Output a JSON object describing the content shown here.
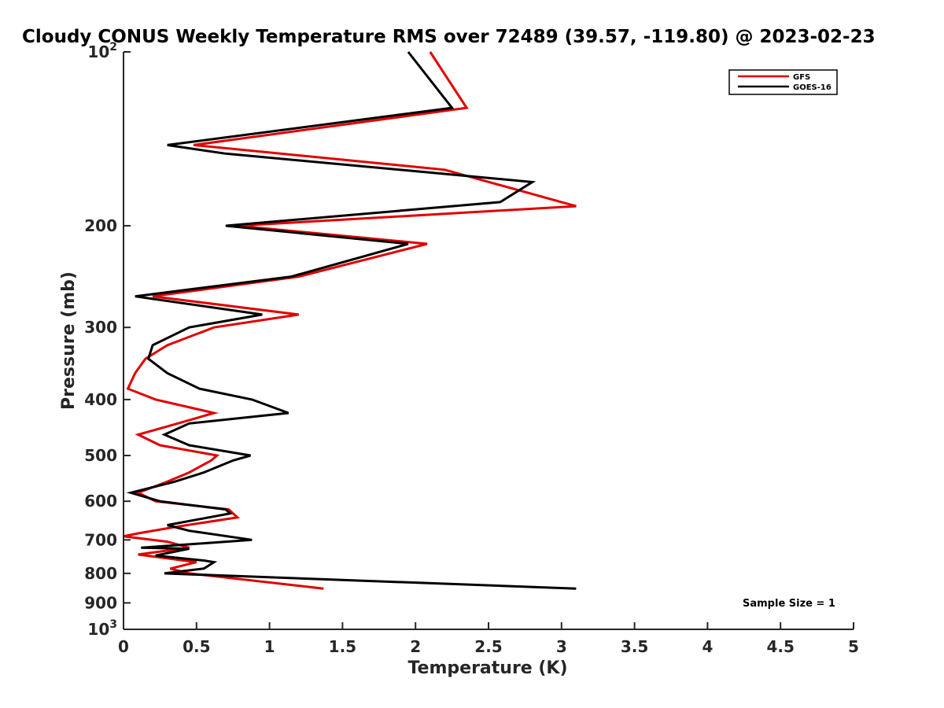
{
  "chart_data": {
    "type": "line",
    "title": "Cloudy CONUS Weekly Temperature RMS over 72489 (39.57, -119.80) @ 2023-02-23",
    "xlabel": "Temperature (K)",
    "ylabel": "Pressure (mb)",
    "xlim": [
      0,
      5
    ],
    "ylim": [
      100,
      1000
    ],
    "y_scale": "log",
    "y_reversed": true,
    "x_ticks": [
      "0",
      "0.5",
      "1",
      "1.5",
      "2",
      "2.5",
      "3",
      "3.5",
      "4",
      "4.5",
      "5"
    ],
    "y_ticks": [
      {
        "value": 100,
        "label": "10",
        "sup": "2"
      },
      {
        "value": 200,
        "label": "200",
        "sup": ""
      },
      {
        "value": 300,
        "label": "300",
        "sup": ""
      },
      {
        "value": 400,
        "label": "400",
        "sup": ""
      },
      {
        "value": 500,
        "label": "500",
        "sup": ""
      },
      {
        "value": 600,
        "label": "600",
        "sup": ""
      },
      {
        "value": 700,
        "label": "700",
        "sup": ""
      },
      {
        "value": 800,
        "label": "800",
        "sup": ""
      },
      {
        "value": 900,
        "label": "900",
        "sup": ""
      },
      {
        "value": 1000,
        "label": "10",
        "sup": "3"
      }
    ],
    "grid": false,
    "legend_position": "top-right",
    "annotation": "Sample Size = 1",
    "series": [
      {
        "name": "GFS",
        "color": "#e00000",
        "points": [
          [
            2.1,
            100
          ],
          [
            2.35,
            125
          ],
          [
            0.48,
            145
          ],
          [
            2.2,
            160
          ],
          [
            3.1,
            185
          ],
          [
            0.78,
            200
          ],
          [
            2.08,
            215
          ],
          [
            1.2,
            245
          ],
          [
            0.2,
            265
          ],
          [
            1.2,
            285
          ],
          [
            0.62,
            300
          ],
          [
            0.3,
            322
          ],
          [
            0.15,
            340
          ],
          [
            0.08,
            360
          ],
          [
            0.03,
            383
          ],
          [
            0.22,
            400
          ],
          [
            0.62,
            422
          ],
          [
            0.4,
            438
          ],
          [
            0.1,
            460
          ],
          [
            0.25,
            480
          ],
          [
            0.64,
            500
          ],
          [
            0.6,
            510
          ],
          [
            0.45,
            535
          ],
          [
            0.3,
            555
          ],
          [
            0.1,
            580
          ],
          [
            0.22,
            600
          ],
          [
            0.72,
            620
          ],
          [
            0.78,
            640
          ],
          [
            0.35,
            665
          ],
          [
            0.1,
            682
          ],
          [
            0.0,
            690
          ],
          [
            0.3,
            705
          ],
          [
            0.45,
            722
          ],
          [
            0.1,
            742
          ],
          [
            0.5,
            765
          ],
          [
            0.32,
            785
          ],
          [
            0.45,
            800
          ],
          [
            1.37,
            850
          ]
        ]
      },
      {
        "name": "GOES-16",
        "color": "#000000",
        "points": [
          [
            1.95,
            100
          ],
          [
            2.25,
            125
          ],
          [
            0.3,
            145
          ],
          [
            0.7,
            150
          ],
          [
            2.8,
            168
          ],
          [
            2.58,
            182
          ],
          [
            0.7,
            200
          ],
          [
            1.95,
            215
          ],
          [
            1.15,
            245
          ],
          [
            0.08,
            265
          ],
          [
            0.95,
            285
          ],
          [
            0.45,
            300
          ],
          [
            0.2,
            322
          ],
          [
            0.17,
            340
          ],
          [
            0.3,
            360
          ],
          [
            0.52,
            383
          ],
          [
            0.88,
            400
          ],
          [
            1.13,
            422
          ],
          [
            0.45,
            440
          ],
          [
            0.28,
            460
          ],
          [
            0.45,
            480
          ],
          [
            0.87,
            500
          ],
          [
            0.75,
            510
          ],
          [
            0.55,
            535
          ],
          [
            0.35,
            555
          ],
          [
            0.05,
            580
          ],
          [
            0.25,
            600
          ],
          [
            0.7,
            620
          ],
          [
            0.73,
            630
          ],
          [
            0.3,
            660
          ],
          [
            0.45,
            675
          ],
          [
            0.88,
            700
          ],
          [
            0.12,
            722
          ],
          [
            0.45,
            725
          ],
          [
            0.22,
            745
          ],
          [
            0.55,
            760
          ],
          [
            0.62,
            765
          ],
          [
            0.55,
            785
          ],
          [
            0.28,
            800
          ],
          [
            3.1,
            850
          ]
        ]
      }
    ]
  }
}
